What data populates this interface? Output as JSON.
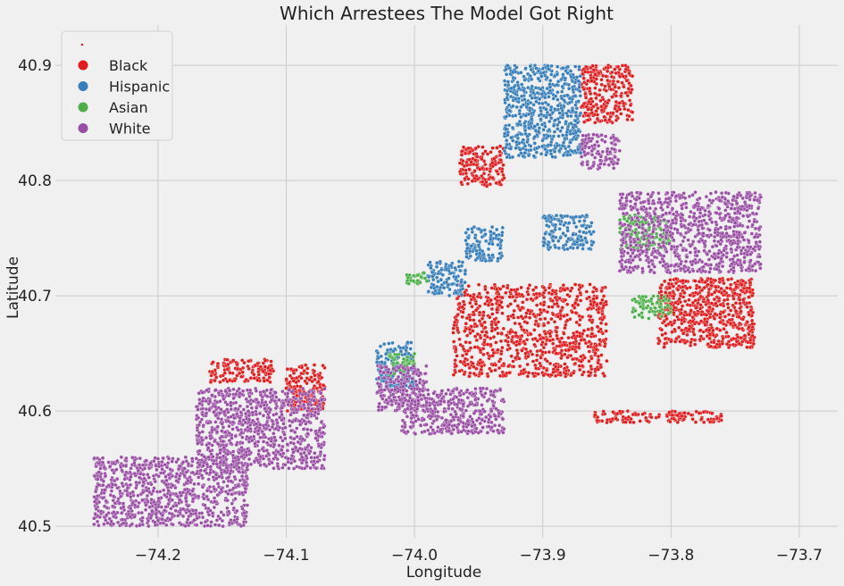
{
  "chart_data": {
    "type": "scatter",
    "title": "Which Arrestees The Model Got Right",
    "xlabel": "Longitude",
    "ylabel": "Latitude",
    "xlim": [
      -74.28,
      -73.67
    ],
    "ylim": [
      40.49,
      40.935
    ],
    "xticks": [
      -74.2,
      -74.1,
      -74.0,
      -73.9,
      -73.8,
      -73.7
    ],
    "xtick_labels": [
      "−74.2",
      "−74.1",
      "−74.0",
      "−73.9",
      "−73.8",
      "−73.7"
    ],
    "yticks": [
      40.5,
      40.6,
      40.7,
      40.8,
      40.9
    ],
    "ytick_labels": [
      "40.5",
      "40.6",
      "40.7",
      "40.8",
      "40.9"
    ],
    "grid": true,
    "legend_position": "top-left",
    "series": [
      {
        "name": "Black",
        "color": "#e41a1c",
        "regions": [
          {
            "x": [
              -73.97,
              -73.85
            ],
            "y": [
              40.63,
              40.71
            ]
          },
          {
            "x": [
              -73.81,
              -73.735
            ],
            "y": [
              40.655,
              40.715
            ]
          },
          {
            "x": [
              -73.87,
              -73.83
            ],
            "y": [
              40.85,
              40.9
            ]
          },
          {
            "x": [
              -73.965,
              -73.93
            ],
            "y": [
              40.795,
              40.83
            ]
          },
          {
            "x": [
              -73.86,
              -73.76
            ],
            "y": [
              40.59,
              40.6
            ]
          },
          {
            "x": [
              -74.1,
              -74.07
            ],
            "y": [
              40.6,
              40.64
            ]
          },
          {
            "x": [
              -74.16,
              -74.11
            ],
            "y": [
              40.625,
              40.645
            ]
          }
        ]
      },
      {
        "name": "Hispanic",
        "color": "#377eb8",
        "regions": [
          {
            "x": [
              -73.93,
              -73.87
            ],
            "y": [
              40.82,
              40.9
            ]
          },
          {
            "x": [
              -73.9,
              -73.86
            ],
            "y": [
              40.74,
              40.77
            ]
          },
          {
            "x": [
              -73.99,
              -73.96
            ],
            "y": [
              40.7,
              40.73
            ]
          },
          {
            "x": [
              -73.96,
              -73.93
            ],
            "y": [
              40.73,
              40.76
            ]
          },
          {
            "x": [
              -74.03,
              -74.0
            ],
            "y": [
              40.62,
              40.66
            ]
          }
        ]
      },
      {
        "name": "Asian",
        "color": "#4daf4a",
        "regions": [
          {
            "x": [
              -73.84,
              -73.8
            ],
            "y": [
              40.74,
              40.77
            ]
          },
          {
            "x": [
              -74.02,
              -74.0
            ],
            "y": [
              40.63,
              40.65
            ]
          },
          {
            "x": [
              -73.83,
              -73.8
            ],
            "y": [
              40.68,
              40.7
            ]
          },
          {
            "x": [
              -74.01,
              -73.99
            ],
            "y": [
              40.71,
              40.72
            ]
          }
        ]
      },
      {
        "name": "White",
        "color": "#984ea3",
        "regions": [
          {
            "x": [
              -74.25,
              -74.13
            ],
            "y": [
              40.5,
              40.56
            ]
          },
          {
            "x": [
              -74.17,
              -74.07
            ],
            "y": [
              40.55,
              40.62
            ]
          },
          {
            "x": [
              -74.01,
              -73.93
            ],
            "y": [
              40.58,
              40.62
            ]
          },
          {
            "x": [
              -73.84,
              -73.73
            ],
            "y": [
              40.72,
              40.79
            ]
          },
          {
            "x": [
              -73.87,
              -73.84
            ],
            "y": [
              40.81,
              40.84
            ]
          },
          {
            "x": [
              -74.03,
              -73.99
            ],
            "y": [
              40.6,
              40.64
            ]
          }
        ]
      }
    ]
  }
}
